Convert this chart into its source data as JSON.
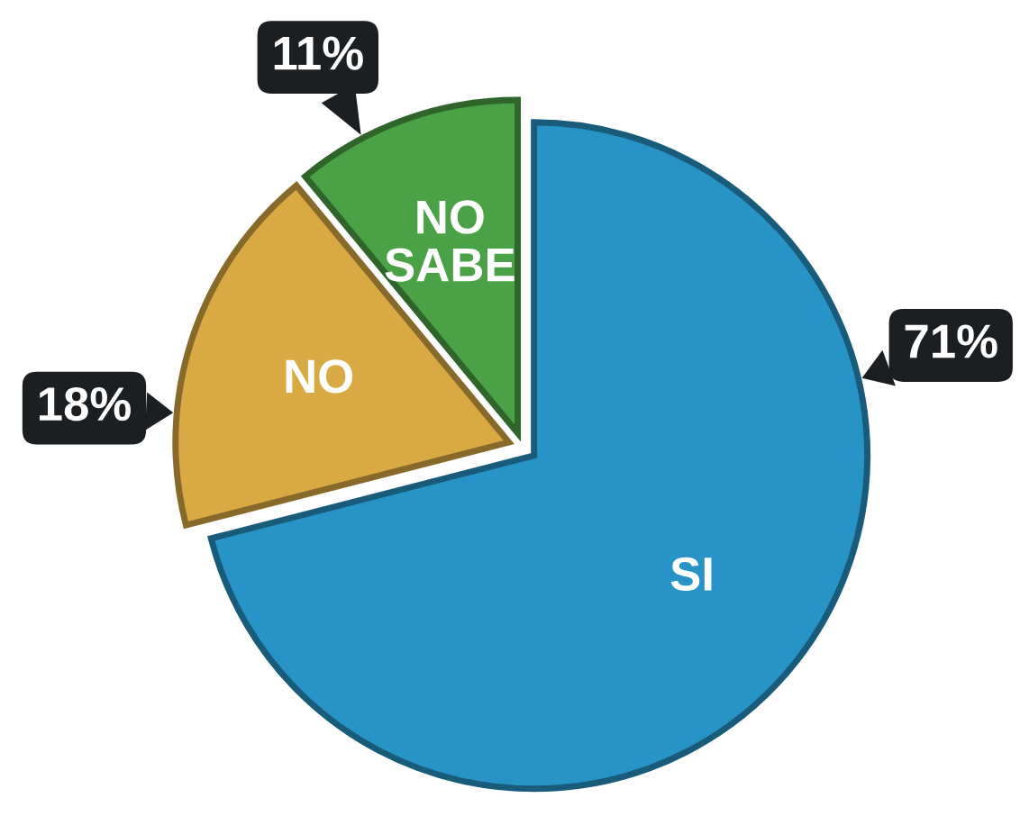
{
  "chart_data": {
    "type": "pie",
    "categories": [
      "SI",
      "NO",
      "NO SABE"
    ],
    "values": [
      71,
      18,
      11
    ],
    "colors": [
      "#2793c7",
      "#d9a944",
      "#4ba246"
    ],
    "value_labels": [
      "71%",
      "18%",
      "11%"
    ]
  }
}
